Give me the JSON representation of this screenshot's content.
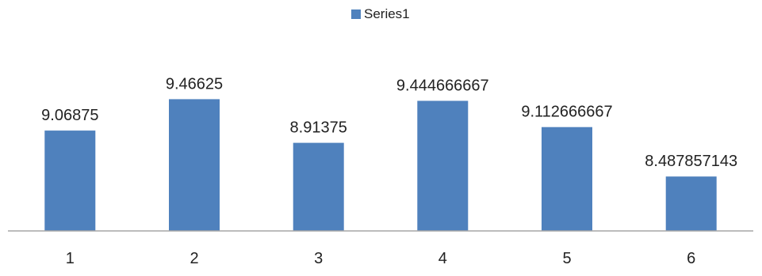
{
  "chart_data": {
    "type": "bar",
    "categories": [
      "1",
      "2",
      "3",
      "4",
      "5",
      "6"
    ],
    "series": [
      {
        "name": "Series1",
        "values": [
          9.06875,
          9.46625,
          8.91375,
          9.444666667,
          9.112666667,
          8.487857143
        ],
        "data_labels": [
          "9.06875",
          "9.46625",
          "8.91375",
          "9.444666667",
          "9.112666667",
          "8.487857143"
        ],
        "color": "#4F81BD"
      }
    ],
    "legend_position": "top",
    "grid": false,
    "axis_color": "#A6A6A6",
    "ylim": [
      7.8,
      9.6
    ]
  }
}
